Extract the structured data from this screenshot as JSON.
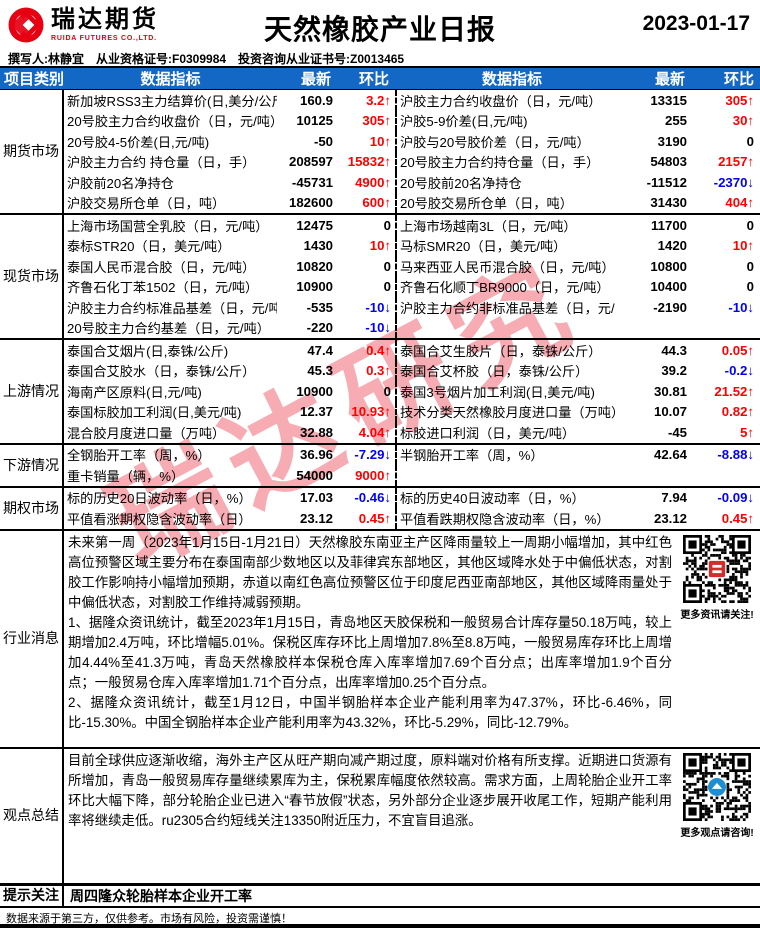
{
  "header": {
    "brand_cn": "瑞达期货",
    "brand_en": "RUIDA FUTURES CO.,LTD.",
    "title": "天然橡胶产业日报",
    "date": "2023-01-17",
    "writer_line": "撰写人:林静宜　从业资格证号:F0309984　投资咨询从业证书号:Z0013465"
  },
  "table": {
    "columns": [
      "项目类别",
      "数据指标",
      "最新",
      "环比",
      "数据指标",
      "最新",
      "环比"
    ],
    "sections": [
      {
        "id": "futures",
        "category": "期货市场",
        "rows": [
          {
            "l": "新加坡RSS3主力结算价(日,美分/公斤",
            "lv": "160.9",
            "lc": "3.2↑",
            "ld": "up",
            "r": "沪胶主力合约收盘价（日，元/吨）",
            "rv": "13315",
            "rc": "305↑",
            "rd": "up"
          },
          {
            "l": "20号胶主力合约收盘价（日，元/吨）",
            "lv": "10125",
            "lc": "305↑",
            "ld": "up",
            "r": "沪胶5-9价差(日,元/吨)",
            "rv": "255",
            "rc": "30↑",
            "rd": "up"
          },
          {
            "l": "20号胶4-5价差(日,元/吨)",
            "lv": "-50",
            "lc": "10↑",
            "ld": "up",
            "r": "沪胶与20号胶价差（日，元/吨）",
            "rv": "3190",
            "rc": "0",
            "rd": "flat"
          },
          {
            "l": "沪胶主力合约 持仓量（日，手）",
            "lv": "208597",
            "lc": "15832↑",
            "ld": "up",
            "r": "20号胶主力合约持仓量（日，手）",
            "rv": "54803",
            "rc": "2157↑",
            "rd": "up"
          },
          {
            "l": "沪胶前20名净持仓",
            "lv": "-45731",
            "lc": "4900↑",
            "ld": "up",
            "r": "20号胶前20名净持仓",
            "rv": "-11512",
            "rc": "-2370↓",
            "rd": "down"
          },
          {
            "l": "沪胶交易所仓单（日，吨）",
            "lv": "182600",
            "lc": "600↑",
            "ld": "up",
            "r": "20号胶交易所仓单（日，吨）",
            "rv": "31430",
            "rc": "404↑",
            "rd": "up"
          }
        ]
      },
      {
        "id": "spot",
        "category": "现货市场",
        "rows": [
          {
            "l": "上海市场国营全乳胶（日，元/吨）",
            "lv": "12475",
            "lc": "0",
            "ld": "flat",
            "r": "上海市场越南3L（日，元/吨）",
            "rv": "11700",
            "rc": "0",
            "rd": "flat"
          },
          {
            "l": "泰标STR20（日，美元/吨）",
            "lv": "1430",
            "lc": "10↑",
            "ld": "up",
            "r": "马标SMR20（日，美元/吨）",
            "rv": "1420",
            "rc": "10↑",
            "rd": "up"
          },
          {
            "l": "泰国人民币混合胶（日，元/吨）",
            "lv": "10820",
            "lc": "0",
            "ld": "flat",
            "r": "马来西亚人民币混合胶（日，元/吨）",
            "rv": "10800",
            "rc": "0",
            "rd": "flat"
          },
          {
            "l": "齐鲁石化丁苯1502（日，元/吨）",
            "lv": "10900",
            "lc": "0",
            "ld": "flat",
            "r": "齐鲁石化顺丁BR9000（日，元/吨）",
            "rv": "10400",
            "rc": "0",
            "rd": "flat"
          },
          {
            "l": "沪胶主力合约标准品基差（日，元/吨",
            "lv": "-535",
            "lc": "-10↓",
            "ld": "down",
            "r": "沪胶主力合约非标准品基差（日，元/",
            "rv": "-2190",
            "rc": "-10↓",
            "rd": "down"
          },
          {
            "l": "20号胶主力合约基差（日，元/吨）",
            "lv": "-220",
            "lc": "-10↓",
            "ld": "down",
            "r": "",
            "rv": "",
            "rc": "",
            "rd": "flat"
          }
        ]
      },
      {
        "id": "upstream",
        "category": "上游情况",
        "rows": [
          {
            "l": "泰国合艾烟片(日,泰铢/公斤)",
            "lv": "47.4",
            "lc": "0.4↑",
            "ld": "up",
            "r": "泰国合艾生胶片（日，泰铢/公斤）",
            "rv": "44.3",
            "rc": "0.05↑",
            "rd": "up"
          },
          {
            "l": "泰国合艾胶水（日，泰铢/公斤）",
            "lv": "45.3",
            "lc": "0.3↑",
            "ld": "up",
            "r": "泰国合艾杯胶（日，泰铢/公斤）",
            "rv": "39.2",
            "rc": "-0.2↓",
            "rd": "down"
          },
          {
            "l": "海南产区原料(日,元/吨)",
            "lv": "10900",
            "lc": "0",
            "ld": "flat",
            "r": "泰国3号烟片加工利润(日,美元/吨)",
            "rv": "30.81",
            "rc": "21.52↑",
            "rd": "up"
          },
          {
            "l": "泰国标胶加工利润(日,美元/吨)",
            "lv": "12.37",
            "lc": "10.93↑",
            "ld": "up",
            "r": "技术分类天然橡胶月度进口量（万吨）",
            "rv": "10.07",
            "rc": "0.82↑",
            "rd": "up"
          },
          {
            "l": "混合胶月度进口量（万吨）",
            "lv": "32.88",
            "lc": "4.04↑",
            "ld": "up",
            "r": "标胶进口利润（日，美元/吨）",
            "rv": "-45",
            "rc": "5↑",
            "rd": "up"
          }
        ]
      },
      {
        "id": "downstream",
        "category": "下游情况",
        "rows": [
          {
            "l": "全钢胎开工率（周，%）",
            "lv": "36.96",
            "lc": "-7.29↓",
            "ld": "down",
            "r": "半钢胎开工率（周，%）",
            "rv": "42.64",
            "rc": "-8.88↓",
            "rd": "down"
          },
          {
            "l": "重卡销量（辆，%）",
            "lv": "54000",
            "lc": "9000↑",
            "ld": "up",
            "r": "",
            "rv": "",
            "rc": "",
            "rd": "flat"
          }
        ]
      },
      {
        "id": "options",
        "category": "期权市场",
        "rows": [
          {
            "l": "标的历史20日波动率（日，%）",
            "lv": "17.03",
            "lc": "-0.46↓",
            "ld": "down",
            "r": "标的历史40日波动率（日，%）",
            "rv": "7.94",
            "rc": "-0.09↓",
            "rd": "down"
          },
          {
            "l": "平值看涨期权隐含波动率（日）",
            "lv": "23.12",
            "lc": "0.45↑",
            "ld": "up",
            "r": "平值看跌期权隐含波动率（日，%）",
            "rv": "23.12",
            "rc": "0.45↑",
            "rd": "up"
          }
        ]
      }
    ],
    "news": {
      "category": "行业消息",
      "paragraphs": [
        "未来第一周（2023年1月15日-1月21日）天然橡胶东南亚主产区降雨量较上一周期小幅增加，其中红色高位预警区域主要分布在泰国南部少数地区以及菲律宾东部地区，其他区域降水处于中偏低状态，对割胶工作影响持小幅增加预期，赤道以南红色高位预警区位于印度尼西亚南部地区，其他区域降雨量处于中偏低状态，对割胶工作维持减弱预期。",
        "1、据隆众资讯统计，截至2023年1月15日，青岛地区天胶保税和一般贸易合计库存量50.18万吨，较上期增加2.4万吨，环比增幅5.01%。保税区库存环比上周增加7.8%至8.8万吨，一般贸易库存环比上周增加4.44%至41.3万吨，青岛天然橡胶样本保税仓库入库率增加7.69个百分点；出库率增加1.9个百分点；一般贸易仓库入库率增加1.71个百分点，出库率增加0.25个百分点。",
        "2、据隆众资讯统计，截至1月12日，中国半钢胎样本企业产能利用率为47.37%，环比-6.46%，同比-15.30%。中国全钢胎样本企业产能利用率为43.32%，环比-5.29%，同比-12.79%。"
      ],
      "qr_caption": "更多资讯请关注!"
    },
    "summary": {
      "category": "观点总结",
      "paragraphs": [
        "目前全球供应逐渐收缩，海外主产区从旺产期向减产期过度，原料端对价格有所支撑。近期进口货源有所增加，青岛一般贸易库存量继续累库为主，保税累库幅度依然较高。需求方面，上周轮胎企业开工率环比大幅下降，部分轮胎企业已进入“春节放假”状态，另外部分企业逐步展开收尾工作，短期产能利用率将继续走低。ru2305合约短线关注13350附近压力，不宜盲目追涨。"
      ],
      "qr_caption": "更多观点请咨询!"
    },
    "notice": {
      "category": "提示关注",
      "text": "周四隆众轮胎样本企业开工率"
    }
  },
  "footer": {
    "disclaimer": "数据来源于第三方，仅供参考。市场有风险，投资需谨慎！"
  },
  "watermark": "瑞达研究",
  "colors": {
    "header_blue": "#1368c6",
    "up_red": "#ff0000",
    "down_blue": "#0000ff",
    "brand_red": "#e60012",
    "qr_center_red": "#d42b2b",
    "qr_center_blue": "#1d8fd1"
  }
}
